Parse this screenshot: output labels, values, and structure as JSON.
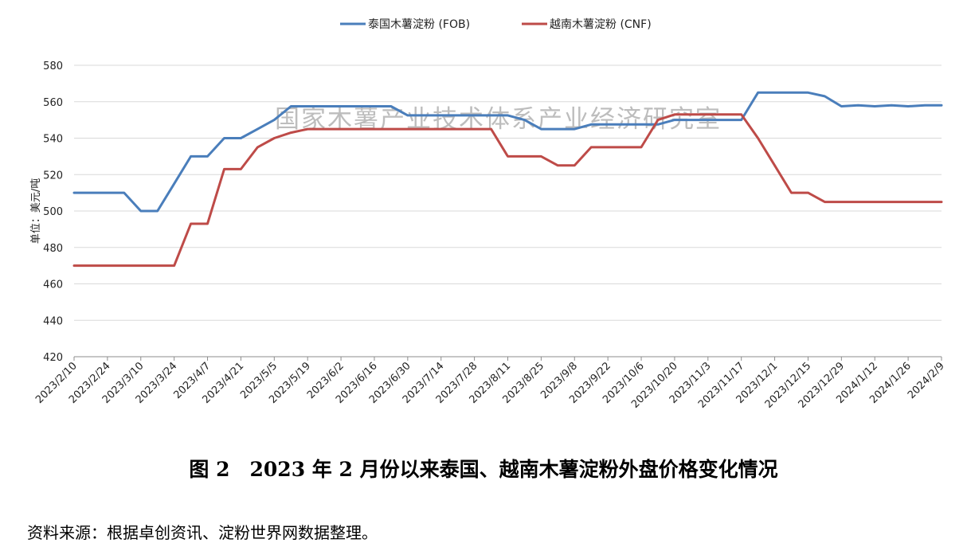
{
  "chart_data": {
    "type": "line",
    "ylabel": "单位：美元/吨",
    "xlabel": "",
    "ylim": [
      420,
      580
    ],
    "yticks": [
      420,
      440,
      460,
      480,
      500,
      520,
      540,
      560,
      580
    ],
    "grid": true,
    "legend_placement": "top-center",
    "watermark": "国家木薯产业技术体系产业经济研究室",
    "x": [
      "2023/2/10",
      "2023/2/17",
      "2023/2/24",
      "2023/3/3",
      "2023/3/10",
      "2023/3/17",
      "2023/3/24",
      "2023/3/31",
      "2023/4/7",
      "2023/4/14",
      "2023/4/21",
      "2023/4/28",
      "2023/5/5",
      "2023/5/12",
      "2023/5/19",
      "2023/5/26",
      "2023/6/2",
      "2023/6/9",
      "2023/6/16",
      "2023/6/23",
      "2023/6/30",
      "2023/7/7",
      "2023/7/14",
      "2023/7/21",
      "2023/7/28",
      "2023/8/4",
      "2023/8/11",
      "2023/8/18",
      "2023/8/25",
      "2023/9/1",
      "2023/9/8",
      "2023/9/15",
      "2023/9/22",
      "2023/9/29",
      "2023/10/6",
      "2023/10/13",
      "2023/10/20",
      "2023/10/27",
      "2023/11/3",
      "2023/11/10",
      "2023/11/17",
      "2023/11/24",
      "2023/12/1",
      "2023/12/8",
      "2023/12/15",
      "2023/12/22",
      "2023/12/29",
      "2024/1/5",
      "2024/1/12",
      "2024/1/19",
      "2024/1/26",
      "2024/2/2",
      "2024/2/9"
    ],
    "xtick_labels": [
      "2023/2/10",
      "2023/2/24",
      "2023/3/10",
      "2023/3/24",
      "2023/4/7",
      "2023/4/21",
      "2023/5/5",
      "2023/5/19",
      "2023/6/2",
      "2023/6/16",
      "2023/6/30",
      "2023/7/14",
      "2023/7/28",
      "2023/8/11",
      "2023/8/25",
      "2023/9/8",
      "2023/9/22",
      "2023/10/6",
      "2023/10/20",
      "2023/11/3",
      "2023/11/17",
      "2023/12/1",
      "2023/12/15",
      "2023/12/29",
      "2024/1/12",
      "2024/1/26",
      "2024/2/9"
    ],
    "series": [
      {
        "name": "泰国木薯淀粉 (FOB)",
        "color": "#4A7EBB",
        "values": [
          510,
          510,
          510,
          510,
          500,
          500,
          515,
          530,
          530,
          540,
          540,
          545,
          550,
          557.5,
          557.5,
          557.5,
          557.5,
          557.5,
          557.5,
          557.5,
          552.5,
          552.5,
          552.5,
          552.5,
          552.5,
          552.5,
          552.5,
          550,
          545,
          545,
          545,
          547.5,
          547.5,
          547.5,
          547.5,
          547.5,
          550,
          550,
          550,
          550,
          550,
          565,
          565,
          565,
          565,
          563,
          557.5,
          558,
          557.5,
          558,
          557.5,
          558,
          558
        ]
      },
      {
        "name": "越南木薯淀粉 (CNF)",
        "color": "#BE4B48",
        "values": [
          470,
          470,
          470,
          470,
          470,
          470,
          470,
          493,
          493,
          523,
          523,
          535,
          540,
          543,
          545,
          545,
          545,
          545,
          545,
          545,
          545,
          545,
          545,
          545,
          545,
          545,
          530,
          530,
          530,
          525,
          525,
          535,
          535,
          535,
          535,
          550,
          553,
          553,
          553,
          553,
          553,
          540,
          525,
          510,
          510,
          505,
          505,
          505,
          505,
          505,
          505,
          505,
          505
        ]
      }
    ]
  },
  "caption": "图 2　2023 年 2 月份以来泰国、越南木薯淀粉外盘价格变化情况",
  "source": "资料来源：根据卓创资讯、淀粉世界网数据整理。"
}
